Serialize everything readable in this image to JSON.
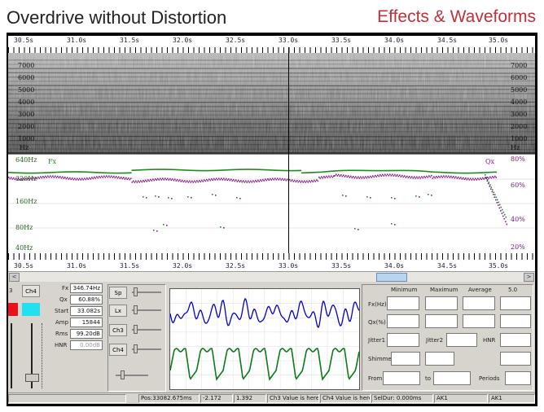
{
  "header": {
    "title": "Overdrive without Distortion",
    "brand": "Effects & Waveforms"
  },
  "time_ruler": {
    "labels": [
      "30.5s",
      "31.0s",
      "31.5s",
      "32.0s",
      "32.5s",
      "33.0s",
      "33.5s",
      "34.0s",
      "34.5s",
      "35.0s"
    ]
  },
  "spectrogram": {
    "freq_labels": [
      "7000",
      "6000",
      "5000",
      "4000",
      "3000",
      "2000",
      "1000",
      "Hz"
    ]
  },
  "pitch_panel": {
    "left_labels": [
      "640Hz",
      "320Hz",
      "160Hz",
      "80Hz",
      "40Hz"
    ],
    "right_labels": [
      "80%",
      "60%",
      "40%",
      "20%"
    ],
    "fx_label": "Fx",
    "qx_label": "Qx",
    "colors": {
      "fx": "#1f8a1f",
      "qx": "#8a1a8a"
    }
  },
  "scroll": {
    "left_arrow": "<",
    "right_arrow": ">"
  },
  "channels": {
    "ch3": "Ch3",
    "ch4": "Ch4",
    "ch3_partial": "3"
  },
  "readouts": {
    "fx": {
      "label": "Fx",
      "value": "346.74Hz"
    },
    "qx": {
      "label": "Qx",
      "value": "60.88%"
    },
    "start": {
      "label": "Start",
      "value": "33.082s"
    },
    "amp": {
      "label": "Amp",
      "value": "15844"
    },
    "rms": {
      "label": "Rms",
      "value": "99.20dB"
    },
    "hnr": {
      "label": "HNR",
      "value": "0.00dB"
    }
  },
  "slider_buttons": {
    "sp": "Sp",
    "lx": "Lx",
    "ch3": "Ch3",
    "ch4": "Ch4"
  },
  "stats": {
    "headers": {
      "min": "Minimum",
      "max": "Maximum",
      "avg": "Average",
      "val": "5.0"
    },
    "rows": [
      "Fx(Hz)",
      "Qx(%)"
    ],
    "jitter1": "Jitter1",
    "jitter2": "Jitter2",
    "hnr": "HNR",
    "shimmer": "Shimmer",
    "from": "From",
    "to": "to",
    "periods": "Periods"
  },
  "status_bar": {
    "pos": "Pos:33082.675ms",
    "v1": "-2.172",
    "v2": "1.392",
    "ch3": "Ch3 Value is here",
    "ch4": "Ch4 Value is here",
    "seldur": "SelDur: 0.000ms",
    "ak1": "AK1",
    "ak1b": "AK1"
  },
  "colors": {
    "ch4_button": "#22e0f0",
    "ch3_button": "#e8121a",
    "fx_wave": "#0000cc",
    "lx_wave": "#0a7a1a"
  }
}
